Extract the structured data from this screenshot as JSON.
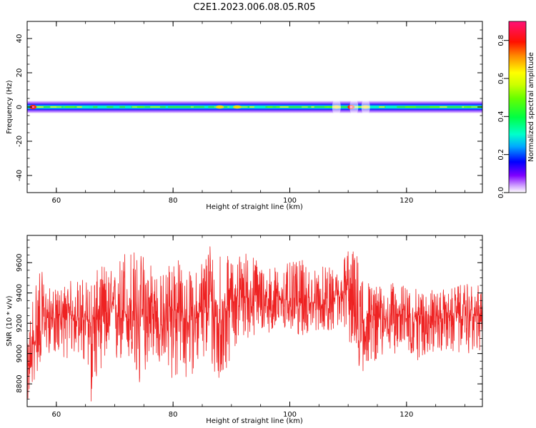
{
  "title": "C2E1.2023.006.08.05.R05",
  "chart_data": [
    {
      "type": "heatmap",
      "title": "",
      "xlabel": "Height of straight line (km)",
      "ylabel": "Frequency (Hz)",
      "xlim": [
        55,
        133
      ],
      "ylim": [
        -50,
        50
      ],
      "xticks": [
        60,
        80,
        100,
        120
      ],
      "yticks": [
        40,
        20,
        0,
        -20,
        -40
      ],
      "grid": false,
      "colorbar": {
        "label": "Normalized spectral amplitude",
        "range": [
          0,
          0.9
        ],
        "ticks": [
          "0.0",
          "0.2",
          "0.4",
          "0.6",
          "0.8"
        ],
        "colormap": "gist_ncar-like",
        "colors": [
          "#ffffff",
          "#7f00ff",
          "#0000ff",
          "#00bfff",
          "#00ffbf",
          "#00ff00",
          "#c0ff00",
          "#ffff00",
          "#ff9900",
          "#ff0000",
          "#ff0066",
          "#ff1493"
        ]
      },
      "band": {
        "center_hz": 0,
        "core_halfwidth_hz": 1.5,
        "outer_halfwidth_hz": 4,
        "hotspots_km": [
          56,
          88,
          91,
          108,
          110.5,
          113
        ]
      }
    },
    {
      "type": "line",
      "title": "",
      "xlabel": "Height of straight line (km)",
      "ylabel": "SNR (10 * v/v)",
      "xlim": [
        55,
        133
      ],
      "ylim": [
        8650,
        9780
      ],
      "xticks": [
        60,
        80,
        100,
        120
      ],
      "yticks": [
        8800,
        9000,
        9200,
        9400,
        9600
      ],
      "grid": false,
      "series": [
        {
          "color": "#ee2222",
          "x": [
            55,
            56,
            57,
            58,
            60,
            62,
            64,
            66,
            68,
            70,
            72,
            74,
            76,
            78,
            80,
            82,
            84,
            86,
            88,
            90,
            92,
            94,
            96,
            98,
            100,
            102,
            104,
            106,
            108,
            110,
            112,
            114,
            116,
            118,
            120,
            122,
            124,
            126,
            128,
            130,
            132
          ],
          "values": [
            8850,
            9050,
            9150,
            9250,
            9230,
            9260,
            9240,
            9200,
            9250,
            9300,
            9260,
            9230,
            9250,
            9180,
            9300,
            9230,
            9250,
            9320,
            9200,
            9380,
            9380,
            9350,
            9330,
            9360,
            9350,
            9340,
            9330,
            9310,
            9350,
            9420,
            9180,
            9250,
            9230,
            9260,
            9250,
            9240,
            9250,
            9230,
            9260,
            9250,
            9250
          ],
          "lower_envelope": [
            8650,
            8780,
            8900,
            9000,
            9000,
            8960,
            9000,
            8660,
            8950,
            8850,
            9000,
            8680,
            9000,
            8900,
            8800,
            8800,
            8900,
            8950,
            8730,
            9000,
            9100,
            9100,
            9150,
            9100,
            9150,
            9100,
            9150,
            9150,
            9150,
            9100,
            8830,
            8950,
            8950,
            9000,
            9000,
            8950,
            9000,
            9000,
            9000,
            9000,
            9000
          ],
          "upper_envelope": [
            9050,
            9450,
            9650,
            9450,
            9420,
            9480,
            9500,
            9500,
            9600,
            9540,
            9770,
            9660,
            9700,
            9520,
            9700,
            9550,
            9550,
            9780,
            9750,
            9600,
            9700,
            9650,
            9580,
            9580,
            9600,
            9620,
            9560,
            9580,
            9550,
            9720,
            9650,
            9450,
            9450,
            9470,
            9450,
            9420,
            9430,
            9420,
            9440,
            9460,
            9450
          ]
        }
      ]
    }
  ]
}
